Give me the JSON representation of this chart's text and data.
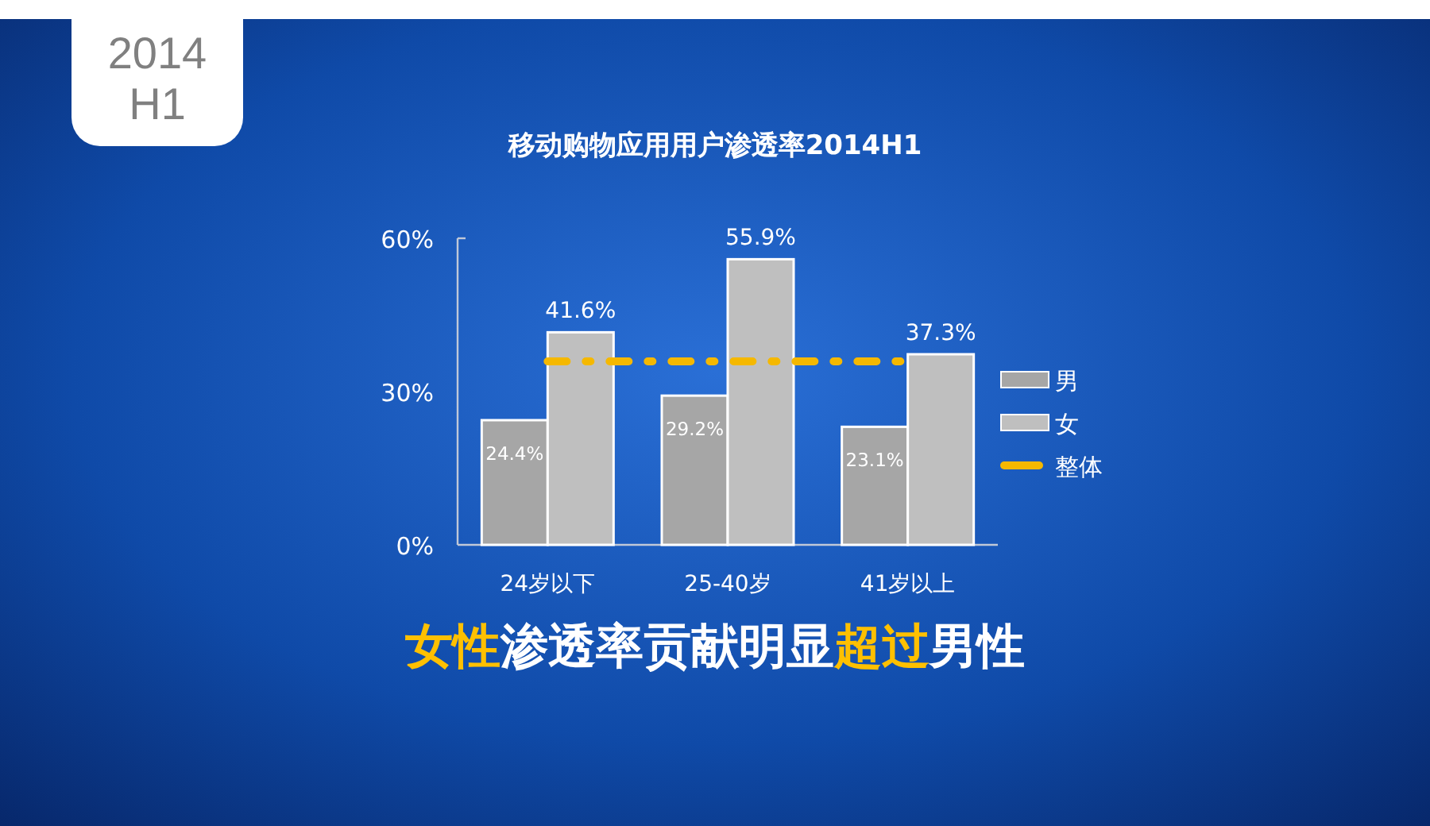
{
  "chart_data": {
    "type": "bar",
    "title": "移动购物应用用户渗透率2014H1",
    "categories": [
      "24岁以下",
      "25-40岁",
      "41岁以上"
    ],
    "series": [
      {
        "name": "男",
        "color": "#a6a6a6",
        "values": [
          24.4,
          29.2,
          23.1
        ],
        "value_labels": [
          "24.4%",
          "29.2%",
          "23.1%"
        ]
      },
      {
        "name": "女",
        "color": "#bfbfbf",
        "values": [
          41.6,
          55.9,
          37.3
        ],
        "value_labels": [
          "41.6%",
          "55.9%",
          "37.3%"
        ]
      },
      {
        "name": "整体",
        "type": "line",
        "color": "#f5b800",
        "line_style": "dashed",
        "values": [
          35.9,
          35.9,
          35.9
        ]
      }
    ],
    "ylim": [
      0,
      60
    ],
    "yticks": [
      {
        "value": 0,
        "label": "0%"
      },
      {
        "value": 30,
        "label": "30%"
      },
      {
        "value": 60,
        "label": "60%"
      }
    ],
    "legend": "right",
    "grid": false,
    "annotations": [
      "2014 H1",
      "**女性**渗透率贡献明显**超过**男性"
    ]
  }
}
